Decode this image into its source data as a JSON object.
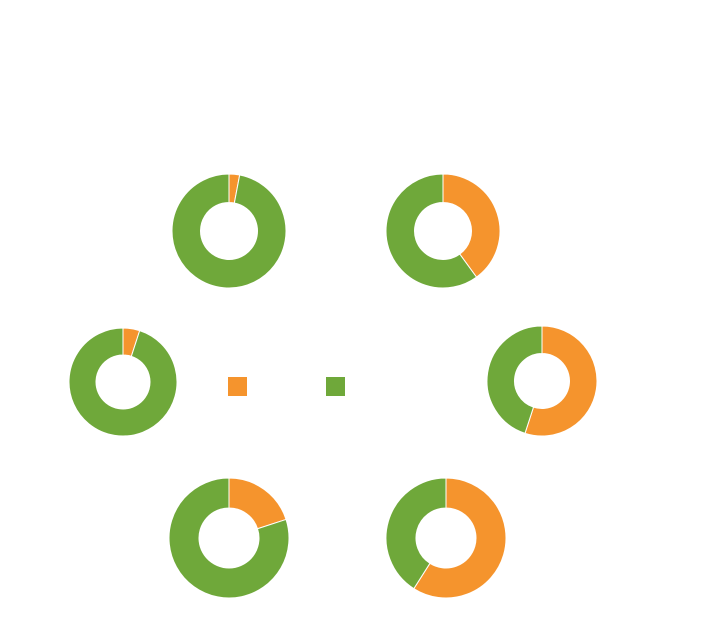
{
  "chart_data": {
    "type": "pie",
    "style": "donut",
    "title": "",
    "colors": {
      "orange": "#F5942D",
      "green": "#6FA83A",
      "background": "#FFFFFF"
    },
    "legend": {
      "placement": "center",
      "items": [
        {
          "label": "",
          "color": "#F5942D"
        },
        {
          "label": "",
          "color": "#6FA83A"
        }
      ]
    },
    "charts": [
      {
        "orange": 3,
        "green": 97
      },
      {
        "orange": 40,
        "green": 60
      },
      {
        "orange": 5,
        "green": 95
      },
      {
        "orange": 55,
        "green": 45
      },
      {
        "orange": 20,
        "green": 80
      },
      {
        "orange": 59,
        "green": 41
      }
    ]
  }
}
